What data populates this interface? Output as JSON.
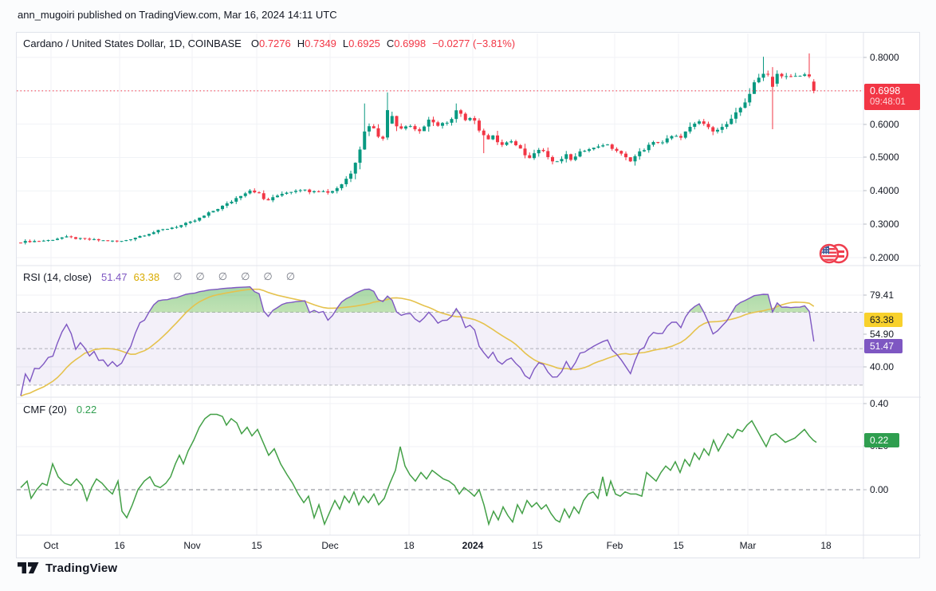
{
  "page": {
    "attribution": "ann_mugoiri published on TradingView.com, Mar 16, 2024 14:11 UTC"
  },
  "symbol_header": {
    "title": "Cardano / United States Dollar, 1D, COINBASE",
    "ohlc": {
      "o": {
        "label": "O",
        "value": "0.7276"
      },
      "h": {
        "label": "H",
        "value": "0.7349"
      },
      "l": {
        "label": "L",
        "value": "0.6925"
      },
      "c": {
        "label": "C",
        "value": "0.6998"
      }
    },
    "change": "−0.0277 (−3.81%)"
  },
  "price_axis": {
    "labels": [
      {
        "text": "0.8000"
      },
      {
        "text": "0.6000"
      },
      {
        "text": "0.5000"
      },
      {
        "text": "0.4000"
      },
      {
        "text": "0.3000"
      },
      {
        "text": "0.2000"
      }
    ],
    "last_price_badge": {
      "price": "0.6998",
      "countdown": "09:48:01"
    }
  },
  "rsi_panel": {
    "title": "RSI (14, close)",
    "value": "51.47",
    "ma_value": "63.38",
    "empty_slots": [
      "∅",
      "∅",
      "∅",
      "∅",
      "∅",
      "∅"
    ],
    "axis_labels": {
      "top": "79.41",
      "mid": "54.90",
      "low": "40.00"
    },
    "badges": {
      "ma": "63.38",
      "value": "51.47"
    }
  },
  "cmf_panel": {
    "title": "CMF (20)",
    "value": "0.22",
    "axis_labels": {
      "top": "0.40",
      "mid": "0.20",
      "zero": "0.00"
    },
    "badge": "0.22"
  },
  "x_axis": {
    "labels": [
      {
        "text": "Oct"
      },
      {
        "text": "16"
      },
      {
        "text": "Nov"
      },
      {
        "text": "15"
      },
      {
        "text": "Dec"
      },
      {
        "text": "18"
      },
      {
        "text": "2024"
      },
      {
        "text": "15"
      },
      {
        "text": "Feb"
      },
      {
        "text": "15"
      },
      {
        "text": "Mar"
      },
      {
        "text": "18"
      }
    ]
  },
  "footer": {
    "brand": "TradingView"
  },
  "colors": {
    "up": "#089981",
    "down": "#f23645",
    "rsi_line": "#7e57c2",
    "rsi_ma": "#e5c24d",
    "rsi_band_fill": "rgba(126,87,194,0.09)",
    "cmf_line": "#43a047",
    "badge_yellow": "#f8d12c",
    "badge_purple": "#7e57c2",
    "badge_green": "#2f9e4f",
    "badge_red": "#f23645",
    "grid": "#f0f2f6",
    "separator": "#e0e3eb",
    "dashed_level": "#787b86",
    "text": "#131722"
  },
  "chart_data": {
    "type": "candlestick",
    "title": "Cardano / United States Dollar",
    "interval": "1D",
    "exchange": "COINBASE",
    "last": {
      "open": 0.7276,
      "high": 0.7349,
      "low": 0.6925,
      "close": 0.6998,
      "change": -0.0277,
      "change_pct": -3.81
    },
    "current_price": 0.6998,
    "x_axis_labels": [
      {
        "text": "Oct",
        "x": 63
      },
      {
        "text": "16",
        "x": 149
      },
      {
        "text": "Nov",
        "x": 240
      },
      {
        "text": "15",
        "x": 321
      },
      {
        "text": "Dec",
        "x": 413
      },
      {
        "text": "18",
        "x": 512
      },
      {
        "text": "2024",
        "x": 592
      },
      {
        "text": "15",
        "x": 673
      },
      {
        "text": "Feb",
        "x": 770
      },
      {
        "text": "15",
        "x": 850
      },
      {
        "text": "Mar",
        "x": 937
      },
      {
        "text": "18",
        "x": 1035
      }
    ],
    "price_pane": {
      "y_ticks": [
        0.8,
        0.6,
        0.5,
        0.4,
        0.3,
        0.2
      ],
      "y_range": [
        0.176,
        0.874
      ],
      "close_anchors": [
        [
          25,
          0.247
        ],
        [
          60,
          0.252
        ],
        [
          80,
          0.262
        ],
        [
          100,
          0.256
        ],
        [
          130,
          0.251
        ],
        [
          150,
          0.248
        ],
        [
          165,
          0.258
        ],
        [
          185,
          0.272
        ],
        [
          205,
          0.285
        ],
        [
          225,
          0.296
        ],
        [
          240,
          0.307
        ],
        [
          255,
          0.325
        ],
        [
          270,
          0.345
        ],
        [
          285,
          0.362
        ],
        [
          300,
          0.386
        ],
        [
          312,
          0.403
        ],
        [
          322,
          0.396
        ],
        [
          332,
          0.369
        ],
        [
          342,
          0.379
        ],
        [
          352,
          0.393
        ],
        [
          362,
          0.398
        ],
        [
          375,
          0.406
        ],
        [
          385,
          0.399
        ],
        [
          395,
          0.403
        ],
        [
          405,
          0.398
        ],
        [
          413,
          0.396
        ],
        [
          420,
          0.406
        ],
        [
          430,
          0.426
        ],
        [
          440,
          0.458
        ],
        [
          450,
          0.523
        ],
        [
          458,
          0.592
        ],
        [
          464,
          0.601
        ],
        [
          470,
          0.576
        ],
        [
          477,
          0.556
        ],
        [
          483,
          0.571
        ],
        [
          488,
          0.641
        ],
        [
          495,
          0.601
        ],
        [
          502,
          0.589
        ],
        [
          510,
          0.601
        ],
        [
          517,
          0.591
        ],
        [
          523,
          0.576
        ],
        [
          530,
          0.591
        ],
        [
          537,
          0.609
        ],
        [
          543,
          0.601
        ],
        [
          550,
          0.599
        ],
        [
          557,
          0.606
        ],
        [
          563,
          0.596
        ],
        [
          570,
          0.641
        ],
        [
          577,
          0.626
        ],
        [
          583,
          0.616
        ],
        [
          590,
          0.626
        ],
        [
          597,
          0.601
        ],
        [
          603,
          0.566
        ],
        [
          610,
          0.556
        ],
        [
          617,
          0.571
        ],
        [
          623,
          0.546
        ],
        [
          630,
          0.531
        ],
        [
          637,
          0.556
        ],
        [
          643,
          0.541
        ],
        [
          650,
          0.526
        ],
        [
          657,
          0.511
        ],
        [
          663,
          0.496
        ],
        [
          670,
          0.521
        ],
        [
          677,
          0.531
        ],
        [
          683,
          0.511
        ],
        [
          690,
          0.491
        ],
        [
          697,
          0.483
        ],
        [
          703,
          0.496
        ],
        [
          710,
          0.506
        ],
        [
          717,
          0.491
        ],
        [
          723,
          0.506
        ],
        [
          730,
          0.521
        ],
        [
          737,
          0.531
        ],
        [
          743,
          0.526
        ],
        [
          750,
          0.536
        ],
        [
          757,
          0.541
        ],
        [
          763,
          0.531
        ],
        [
          770,
          0.526
        ],
        [
          777,
          0.511
        ],
        [
          783,
          0.499
        ],
        [
          790,
          0.493
        ],
        [
          797,
          0.506
        ],
        [
          803,
          0.519
        ],
        [
          810,
          0.531
        ],
        [
          817,
          0.541
        ],
        [
          823,
          0.549
        ],
        [
          830,
          0.546
        ],
        [
          837,
          0.556
        ],
        [
          843,
          0.563
        ],
        [
          850,
          0.559
        ],
        [
          857,
          0.571
        ],
        [
          863,
          0.586
        ],
        [
          870,
          0.596
        ],
        [
          877,
          0.609
        ],
        [
          883,
          0.599
        ],
        [
          890,
          0.579
        ],
        [
          897,
          0.589
        ],
        [
          903,
          0.586
        ],
        [
          910,
          0.599
        ],
        [
          917,
          0.613
        ],
        [
          923,
          0.633
        ],
        [
          930,
          0.656
        ],
        [
          937,
          0.681
        ],
        [
          943,
          0.713
        ],
        [
          950,
          0.736
        ],
        [
          957,
          0.759
        ],
        [
          963,
          0.749
        ],
        [
          968,
          0.726
        ],
        [
          973,
          0.753
        ],
        [
          978,
          0.743
        ],
        [
          983,
          0.733
        ],
        [
          988,
          0.749
        ],
        [
          993,
          0.739
        ],
        [
          998,
          0.743
        ],
        [
          1003,
          0.753
        ],
        [
          1008,
          0.746
        ],
        [
          1013,
          0.743
        ],
        [
          1018,
          0.716
        ],
        [
          1023,
          0.6998
        ]
      ],
      "wick_overrides": [
        {
          "x": 458,
          "h": 0.662
        },
        {
          "x": 487,
          "o": 0.56,
          "c": 0.642,
          "h": 0.695,
          "l": 0.553
        },
        {
          "x": 570,
          "h": 0.662
        },
        {
          "x": 603,
          "l": 0.513
        },
        {
          "x": 955,
          "h": 0.802
        },
        {
          "x": 966,
          "o": 0.742,
          "c": 0.712,
          "l": 0.585
        },
        {
          "x": 1012,
          "h": 0.812
        },
        {
          "x": 1020,
          "o": 0.7276,
          "h": 0.7349,
          "l": 0.6925,
          "c": 0.6998
        }
      ]
    },
    "rsi_pane": {
      "period": 14,
      "source": "close",
      "last": 51.47,
      "ma_last": 63.38,
      "levels": {
        "overbought": 70,
        "middle": 50,
        "oversold": 30
      },
      "y_labels": [
        79.41,
        63.38,
        54.9,
        51.47,
        40.0
      ]
    },
    "cmf_pane": {
      "period": 20,
      "last": 0.22,
      "y_ticks": [
        0.4,
        0.2,
        0.0
      ],
      "points": [
        [
          25,
          0.01
        ],
        [
          33,
          0.04
        ],
        [
          38,
          -0.04
        ],
        [
          45,
          0.0
        ],
        [
          52,
          0.03
        ],
        [
          58,
          0.02
        ],
        [
          65,
          0.12
        ],
        [
          72,
          0.06
        ],
        [
          80,
          0.03
        ],
        [
          88,
          0.02
        ],
        [
          95,
          0.05
        ],
        [
          102,
          0.02
        ],
        [
          108,
          -0.05
        ],
        [
          114,
          0.01
        ],
        [
          120,
          0.05
        ],
        [
          127,
          0.03
        ],
        [
          134,
          0.0
        ],
        [
          140,
          -0.02
        ],
        [
          147,
          0.04
        ],
        [
          152,
          -0.1
        ],
        [
          158,
          -0.13
        ],
        [
          165,
          -0.07
        ],
        [
          172,
          0.0
        ],
        [
          180,
          0.04
        ],
        [
          187,
          0.06
        ],
        [
          193,
          0.02
        ],
        [
          200,
          0.01
        ],
        [
          207,
          0.03
        ],
        [
          213,
          0.06
        ],
        [
          219,
          0.12
        ],
        [
          224,
          0.16
        ],
        [
          229,
          0.12
        ],
        [
          235,
          0.18
        ],
        [
          242,
          0.23
        ],
        [
          249,
          0.29
        ],
        [
          256,
          0.33
        ],
        [
          263,
          0.35
        ],
        [
          271,
          0.35
        ],
        [
          278,
          0.34
        ],
        [
          283,
          0.3
        ],
        [
          289,
          0.33
        ],
        [
          296,
          0.31
        ],
        [
          302,
          0.26
        ],
        [
          309,
          0.29
        ],
        [
          315,
          0.25
        ],
        [
          322,
          0.28
        ],
        [
          329,
          0.22
        ],
        [
          336,
          0.16
        ],
        [
          343,
          0.19
        ],
        [
          351,
          0.12
        ],
        [
          359,
          0.07
        ],
        [
          366,
          0.03
        ],
        [
          373,
          -0.02
        ],
        [
          380,
          -0.06
        ],
        [
          386,
          -0.03
        ],
        [
          393,
          -0.13
        ],
        [
          399,
          -0.07
        ],
        [
          406,
          -0.16
        ],
        [
          413,
          -0.1
        ],
        [
          419,
          -0.05
        ],
        [
          425,
          -0.09
        ],
        [
          431,
          -0.03
        ],
        [
          437,
          -0.06
        ],
        [
          443,
          -0.01
        ],
        [
          449,
          -0.07
        ],
        [
          455,
          -0.03
        ],
        [
          461,
          -0.06
        ],
        [
          468,
          -0.02
        ],
        [
          474,
          -0.07
        ],
        [
          481,
          -0.04
        ],
        [
          488,
          0.03
        ],
        [
          495,
          0.09
        ],
        [
          501,
          0.2
        ],
        [
          507,
          0.11
        ],
        [
          513,
          0.07
        ],
        [
          520,
          0.04
        ],
        [
          527,
          0.08
        ],
        [
          534,
          0.05
        ],
        [
          541,
          0.09
        ],
        [
          548,
          0.07
        ],
        [
          555,
          0.05
        ],
        [
          562,
          0.04
        ],
        [
          569,
          0.02
        ],
        [
          575,
          -0.02
        ],
        [
          581,
          0.01
        ],
        [
          588,
          -0.01
        ],
        [
          594,
          -0.03
        ],
        [
          600,
          0.0
        ],
        [
          606,
          -0.07
        ],
        [
          612,
          -0.16
        ],
        [
          618,
          -0.1
        ],
        [
          624,
          -0.14
        ],
        [
          630,
          -0.08
        ],
        [
          636,
          -0.12
        ],
        [
          642,
          -0.15
        ],
        [
          648,
          -0.07
        ],
        [
          654,
          -0.11
        ],
        [
          660,
          -0.05
        ],
        [
          666,
          -0.08
        ],
        [
          672,
          -0.06
        ],
        [
          678,
          -0.09
        ],
        [
          684,
          -0.07
        ],
        [
          690,
          -0.11
        ],
        [
          696,
          -0.14
        ],
        [
          701,
          -0.15
        ],
        [
          707,
          -0.09
        ],
        [
          713,
          -0.13
        ],
        [
          719,
          -0.08
        ],
        [
          725,
          -0.11
        ],
        [
          731,
          -0.05
        ],
        [
          737,
          -0.02
        ],
        [
          743,
          -0.01
        ],
        [
          749,
          -0.04
        ],
        [
          755,
          0.06
        ],
        [
          760,
          -0.03
        ],
        [
          765,
          0.04
        ],
        [
          771,
          -0.02
        ],
        [
          777,
          -0.03
        ],
        [
          783,
          -0.01
        ],
        [
          790,
          -0.02
        ],
        [
          797,
          -0.02
        ],
        [
          804,
          -0.03
        ],
        [
          810,
          0.08
        ],
        [
          816,
          0.06
        ],
        [
          822,
          0.04
        ],
        [
          828,
          0.08
        ],
        [
          834,
          0.11
        ],
        [
          840,
          0.09
        ],
        [
          846,
          0.13
        ],
        [
          852,
          0.08
        ],
        [
          858,
          0.14
        ],
        [
          864,
          0.11
        ],
        [
          870,
          0.17
        ],
        [
          876,
          0.14
        ],
        [
          882,
          0.19
        ],
        [
          888,
          0.16
        ],
        [
          894,
          0.23
        ],
        [
          900,
          0.18
        ],
        [
          906,
          0.22
        ],
        [
          912,
          0.26
        ],
        [
          918,
          0.24
        ],
        [
          924,
          0.28
        ],
        [
          930,
          0.27
        ],
        [
          936,
          0.3
        ],
        [
          942,
          0.32
        ],
        [
          948,
          0.28
        ],
        [
          954,
          0.24
        ],
        [
          960,
          0.2
        ],
        [
          966,
          0.25
        ],
        [
          972,
          0.26
        ],
        [
          978,
          0.24
        ],
        [
          984,
          0.22
        ],
        [
          990,
          0.23
        ],
        [
          996,
          0.24
        ],
        [
          1002,
          0.26
        ],
        [
          1008,
          0.28
        ],
        [
          1014,
          0.25
        ],
        [
          1019,
          0.23
        ],
        [
          1023,
          0.22
        ]
      ]
    }
  }
}
